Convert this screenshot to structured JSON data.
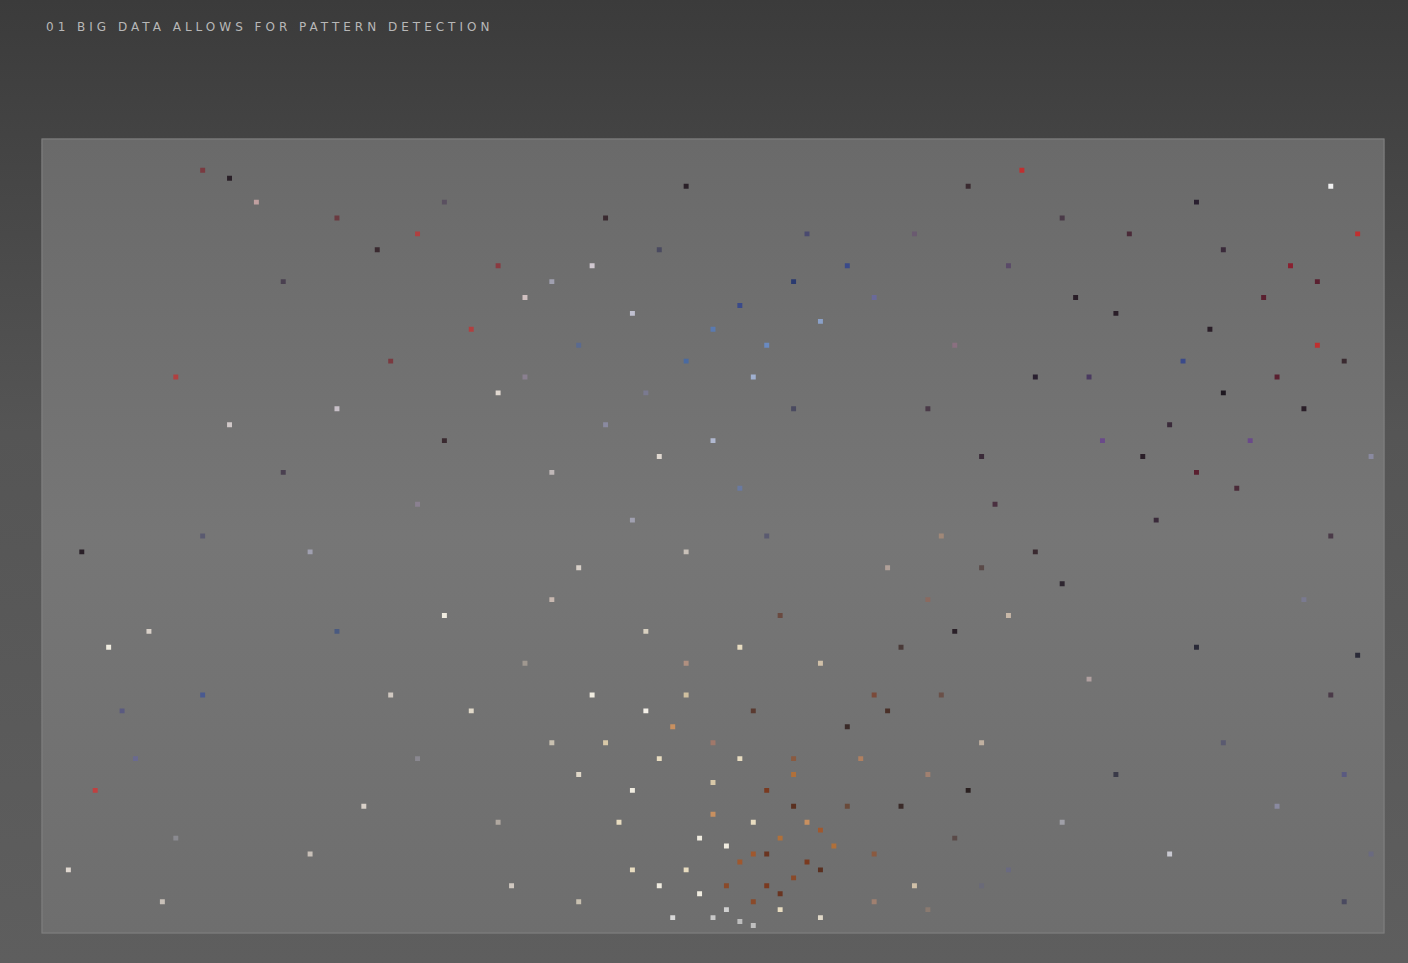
{
  "chart_data": {
    "type": "scatter",
    "title": "01 BIG DATA ALLOWS FOR PATTERN DETECTION",
    "marker": "rect",
    "tick_labels": false,
    "grid": false,
    "xlim": [
      0,
      100
    ],
    "ylim": [
      0,
      100
    ],
    "x": [
      50,
      51,
      52,
      53,
      54,
      55,
      56,
      49,
      52,
      54,
      55,
      57,
      58,
      53,
      56,
      59,
      51,
      48,
      50,
      60,
      44,
      46,
      42,
      45,
      47,
      40,
      43,
      48,
      41,
      38,
      50,
      53,
      56,
      60,
      62,
      58,
      52,
      48,
      45,
      55,
      64,
      66,
      68,
      70,
      72,
      74,
      67,
      71,
      76,
      63,
      82,
      84,
      86,
      88,
      90,
      85,
      87,
      89,
      92,
      83,
      80,
      78,
      91,
      93,
      94,
      88,
      81,
      95,
      86,
      79,
      50,
      52,
      54,
      56,
      58,
      48,
      60,
      62,
      57,
      53,
      66,
      68,
      70,
      72,
      74,
      76,
      65,
      69,
      73,
      77,
      12,
      14,
      16,
      22,
      25,
      28,
      30,
      34,
      18,
      36,
      10,
      14,
      18,
      22,
      26,
      30,
      34,
      12,
      20,
      28,
      2,
      4,
      6,
      8,
      10,
      3,
      5,
      7,
      9,
      12,
      20,
      24,
      28,
      32,
      36,
      22,
      26,
      30,
      34,
      38,
      72,
      76,
      80,
      84,
      88,
      92,
      96,
      78,
      86,
      94,
      62,
      64,
      66,
      68,
      70,
      63,
      65,
      67,
      69,
      61,
      40,
      44,
      48,
      52,
      46,
      42,
      50,
      54,
      38,
      56,
      36,
      40,
      44,
      46,
      42,
      38,
      48,
      32,
      45,
      41,
      97,
      98,
      96,
      99,
      97,
      98,
      96,
      99,
      95,
      97,
      51,
      53,
      55,
      57,
      49,
      54,
      56,
      58,
      52,
      50,
      47,
      53,
      46,
      58,
      62,
      44,
      40,
      35,
      66,
      70
    ],
    "values": [
      2,
      3,
      1.5,
      4,
      6,
      3,
      7,
      5,
      9,
      10,
      12,
      9,
      13,
      14,
      16,
      11,
      11,
      8,
      15,
      16,
      18,
      22,
      24,
      28,
      26,
      20,
      14,
      30,
      30,
      24,
      24,
      28,
      22,
      26,
      30,
      34,
      36,
      34,
      38,
      40,
      36,
      42,
      38,
      46,
      40,
      48,
      50,
      54,
      44,
      46,
      60,
      64,
      58,
      68,
      62,
      72,
      76,
      56,
      70,
      52,
      78,
      70,
      80,
      84,
      66,
      86,
      88,
      74,
      92,
      62,
      76,
      79,
      74,
      82,
      77,
      72,
      84,
      80,
      88,
      70,
      66,
      74,
      60,
      84,
      70,
      90,
      88,
      94,
      96,
      80,
      96,
      95,
      92,
      90,
      86,
      88,
      92,
      84,
      82,
      80,
      70,
      64,
      58,
      66,
      72,
      62,
      68,
      50,
      48,
      54,
      8,
      18,
      28,
      38,
      12,
      48,
      36,
      22,
      4,
      30,
      10,
      16,
      22,
      28,
      34,
      38,
      30,
      40,
      14,
      42,
      8,
      14,
      20,
      10,
      24,
      16,
      30,
      32,
      36,
      42,
      10,
      16,
      20,
      12,
      24,
      28,
      6,
      30,
      18,
      22,
      46,
      52,
      48,
      56,
      60,
      64,
      62,
      50,
      58,
      66,
      70,
      74,
      78,
      86,
      90,
      82,
      94,
      76,
      68,
      84,
      20,
      35,
      50,
      60,
      72,
      88,
      94,
      10,
      82,
      4,
      6,
      10,
      5,
      14,
      12,
      18,
      20,
      8,
      22,
      19,
      2,
      1,
      6,
      2,
      4,
      8,
      4,
      6,
      3,
      6
    ],
    "colors": [
      "#c8c8c8",
      "#d0d0d0",
      "#bdbdbd",
      "#8a4a2a",
      "#7a3a20",
      "#e8dcc0",
      "#8a4a2a",
      "#f0ece0",
      "#a0582e",
      "#6a3420",
      "#b0703a",
      "#7a3a20",
      "#a0582e",
      "#e8dcc0",
      "#5a3020",
      "#b0703a",
      "#f0ece0",
      "#e8dcc0",
      "#c89060",
      "#6a4a3a",
      "#f0ece0",
      "#e8dcc0",
      "#d8c8a8",
      "#f4f0e8",
      "#c89060",
      "#e0d8c8",
      "#e8dcc0",
      "#d0c0a0",
      "#f0ece0",
      "#c8c0b0",
      "#a0786a",
      "#5a3a30",
      "#8a5a40",
      "#3a2a28",
      "#7a4a3a",
      "#d0c0a8",
      "#e8dcc0",
      "#b09080",
      "#d8d0c0",
      "#6a4a40",
      "#4a3a38",
      "#8a6a60",
      "#2a2028",
      "#5a4a48",
      "#c8b8a8",
      "#3a2a30",
      "#a08878",
      "#4a3040",
      "#2e2630",
      "#b0a098",
      "#2a1e28",
      "#3a2a3a",
      "#5a2030",
      "#1e1820",
      "#6a4a8a",
      "#3a4a8a",
      "#2a1e28",
      "#4a2a38",
      "#5a2030",
      "#3a2a3a",
      "#2a1e28",
      "#4a3a60",
      "#5a2030",
      "#8a2030",
      "#2a1e28",
      "#3a2a3a",
      "#4a2a38",
      "#c03030",
      "#2a2030",
      "#6a4a8a",
      "#5a7ab0",
      "#3a4a8a",
      "#6a8ac0",
      "#2a3a70",
      "#8aa0c8",
      "#4a6aa0",
      "#3a4a8a",
      "#6a6a9a",
      "#4a4a70",
      "#a0b0d0",
      "#4a3a48",
      "#8a7080",
      "#3a2a38",
      "#5a4a68",
      "#2a2030",
      "#4a3a48",
      "#6a5a70",
      "#3a2a30",
      "#c03030",
      "#2a1e28",
      "#7a3a40",
      "#2a2028",
      "#c0a0a0",
      "#6a3a40",
      "#3a2a30",
      "#b04040",
      "#5a5060",
      "#8a3a40",
      "#4a4050",
      "#d0c0c0",
      "#b04040",
      "#d0c8c8",
      "#4a4050",
      "#c8c0c8",
      "#7a3a40",
      "#3a2a30",
      "#e0d8d0",
      "#5a5a70",
      "#a0a0b0",
      "#8a8090",
      "#e0d8d0",
      "#c04040",
      "#5a5a80",
      "#d8d0c8",
      "#8a8a90",
      "#2a2028",
      "#f0ece0",
      "#6a6a90",
      "#c8c0b8",
      "#4a5a90",
      "#c8c0b8",
      "#d8d0c8",
      "#8a8890",
      "#e0d8c8",
      "#a09890",
      "#4a5a80",
      "#d0c8c0",
      "#f0ece0",
      "#b0a8a0",
      "#c8b8b0",
      "#6a6a80",
      "#a0a0a8",
      "#3a3a48",
      "#c8c8d0",
      "#5a5a70",
      "#8a8aa0",
      "#4a3a48",
      "#b0a0a0",
      "#2a2a38",
      "#7a7a90",
      "#8a5a40",
      "#3a2a28",
      "#a08070",
      "#5a4a48",
      "#c0b0a0",
      "#4a3028",
      "#d0c0a8",
      "#6a5048",
      "#2a2020",
      "#b08060",
      "#d8d0c8",
      "#a0a0b0",
      "#c8c0b8",
      "#6a7aa0",
      "#e0d8d0",
      "#8a8aa0",
      "#b0b8d0",
      "#5a5a70",
      "#c0b8b8",
      "#4a4a60",
      "#8a8090",
      "#5a6a90",
      "#c0c0d0",
      "#4a4a60",
      "#3a2a30",
      "#a0a0b0",
      "#2a2028",
      "#b04040",
      "#7a7a90",
      "#d0c8d0",
      "#5a5a80",
      "#2a2a38",
      "#4a3a48",
      "#8a8aa0",
      "#3a2a30",
      "#c03030",
      "#f0f0f0",
      "#6a6a80",
      "#5a2030",
      "#4a4a60",
      "#8a4a2a",
      "#a0582e",
      "#6a3420",
      "#c89060",
      "#f0ece0",
      "#7a3a20",
      "#b0703a",
      "#5a3020",
      "#e8dcc0",
      "#d8c8a8",
      "#d8d8d8",
      "#c0c0c0",
      "#f0ece0",
      "#e0d8c8",
      "#a08070",
      "#e8dcc0",
      "#c8c0b0",
      "#d0c8c0",
      "#8a7a70",
      "#6a6a78"
    ]
  }
}
